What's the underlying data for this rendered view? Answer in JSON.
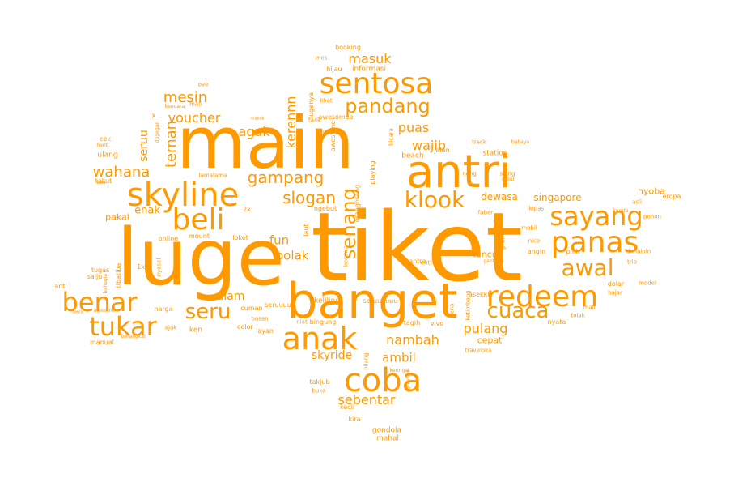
{
  "color": "#ff9900",
  "words": [
    "tiket",
    "luge",
    "main",
    "banget",
    "antri",
    "coba",
    "skyline",
    "sentosa",
    "beli",
    "anak",
    "redeem",
    "panas",
    "sayang",
    "benar",
    "tukar",
    "pandang",
    "klook",
    "awal",
    "cuaca",
    "seru",
    "senang",
    "gampang",
    "slogan",
    "wahana",
    "voucher",
    "teman",
    "agak",
    "mesin",
    "masuk",
    "puas",
    "wajib",
    "kerennn",
    "pulang",
    "nambah",
    "ambil",
    "sebentar",
    "skyride",
    "alam",
    "fun",
    "bolak",
    "enak",
    "seruu",
    "pakai",
    "singapore",
    "dewasa",
    "nyoba",
    "luncur",
    "cepat",
    "gondola",
    "mahal",
    "kira",
    "kecil",
    "booking",
    "informasi",
    "hijau",
    "mes",
    "love",
    "mati",
    "kendara",
    "cek",
    "henti",
    "ulang",
    "takut",
    "bau",
    "x",
    "degegan",
    "lamalama",
    "lihat",
    "tarik",
    "good",
    "mabok",
    "station",
    "track",
    "bahaya",
    "siang",
    "neng",
    "jalan",
    "beach",
    "bicara",
    "umur",
    "kereta",
    "asli",
    "eropa",
    "pohon",
    "model",
    "kipas",
    "faber",
    "mobil",
    "nice",
    "angin",
    "pilih",
    "dimainin",
    "trip",
    "dolar",
    "hajar",
    "tolak",
    "mall",
    "nyata",
    "asekkk",
    "kena",
    "ketimbang",
    "traveloka",
    "gantung",
    "entre",
    "antre",
    "greattt",
    "ku",
    "vivo",
    "tagih",
    "bingung",
    "keliling",
    "seruuuuuu",
    "keringat",
    "takjub",
    "buka",
    "gravitasi",
    "hilang",
    "layan",
    "bosan",
    "color",
    "ken",
    "ajak",
    "harga",
    "manual",
    "salju",
    "tugas",
    "tibatiba",
    "bahagia",
    "nyesel",
    "1x",
    "online",
    "mount",
    "loket",
    "cuman",
    "seruuuuu",
    "niat",
    "ngebut",
    "laut",
    "kutu",
    "kecewa",
    "orangorang",
    "playing",
    "awesome",
    "awesomee",
    "lugenya",
    "2x",
    "anti",
    "seula",
    "awesone",
    "berangkat"
  ]
}
